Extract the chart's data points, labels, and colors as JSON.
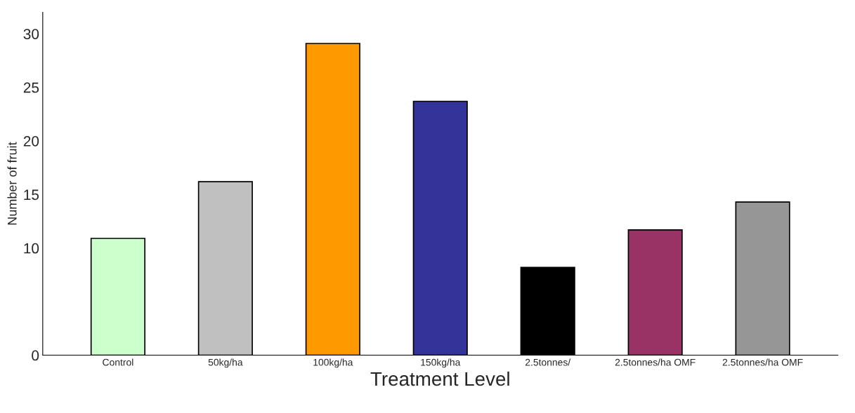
{
  "chart_data": {
    "type": "bar",
    "xlabel": "Treatment Level",
    "ylabel": "Number of fruit",
    "categories": [
      "Control",
      "50kg/ha",
      "100kg/ha",
      "150kg/ha",
      "2.5tonnes/",
      "2.5tonnes/ha OMF",
      "2.5tonnes/ha OMF"
    ],
    "values": [
      10.9,
      16.2,
      29.1,
      23.7,
      8.2,
      11.7,
      14.3
    ],
    "colors": [
      "#ccffcc",
      "#c0c0c0",
      "#ff9900",
      "#333399",
      "#000000",
      "#993366",
      "#969696"
    ],
    "ylim": [
      0,
      32
    ],
    "yticks": [
      0,
      10,
      15,
      20,
      25,
      30
    ],
    "grid": false
  }
}
